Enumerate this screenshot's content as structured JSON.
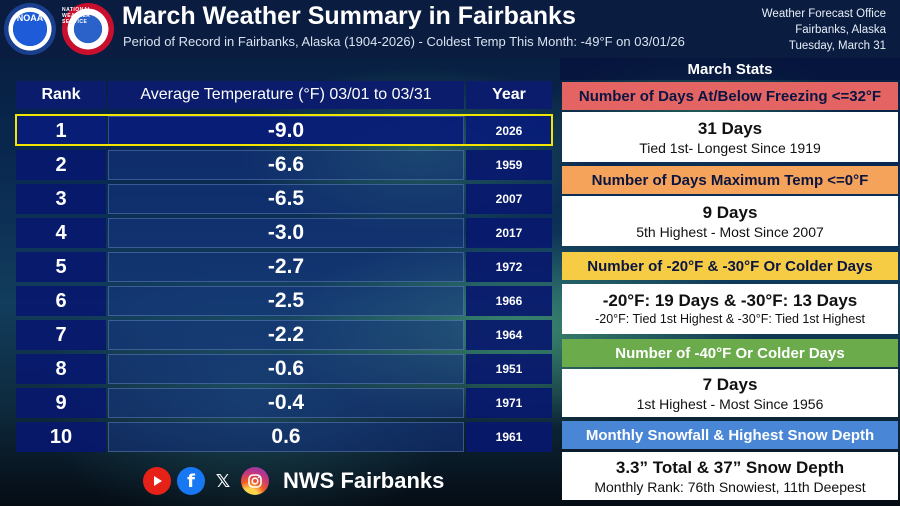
{
  "header": {
    "title": "March Weather Summary in Fairbanks",
    "subtitle": "Period of Record in Fairbanks, Alaska (1904-2026) - Coldest Temp This Month: -49°F on 03/01/26",
    "office_line1": "Weather Forecast Office",
    "office_line2": "Fairbanks, Alaska",
    "office_line3": "Tuesday, March 31",
    "logo_noaa_text": "NOAA",
    "logo_nws_text": "NATIONAL WEATHER SERVICE"
  },
  "table": {
    "col_rank": "Rank",
    "col_temp": "Average Temperature (°F) 03/01 to 03/31",
    "col_year": "Year",
    "rows": [
      {
        "rank": "1",
        "temp": "-9.0",
        "year": "2026"
      },
      {
        "rank": "2",
        "temp": "-6.6",
        "year": "1959"
      },
      {
        "rank": "3",
        "temp": "-6.5",
        "year": "2007"
      },
      {
        "rank": "4",
        "temp": "-3.0",
        "year": "2017"
      },
      {
        "rank": "5",
        "temp": "-2.7",
        "year": "1972"
      },
      {
        "rank": "6",
        "temp": "-2.5",
        "year": "1966"
      },
      {
        "rank": "7",
        "temp": "-2.2",
        "year": "1964"
      },
      {
        "rank": "8",
        "temp": "-0.6",
        "year": "1951"
      },
      {
        "rank": "9",
        "temp": "-0.4",
        "year": "1971"
      },
      {
        "rank": "10",
        "temp": "0.6",
        "year": "1961"
      }
    ],
    "highlight_color": "#f2e600"
  },
  "stats": {
    "title": "March Stats",
    "freezing_label": "Number of Days At/Below Freezing <=32°F",
    "freezing_value": "31 Days",
    "freezing_detail": "Tied 1st- Longest Since 1919",
    "maxzero_label": "Number of Days Maximum Temp <=0°F",
    "maxzero_value": "9 Days",
    "maxzero_detail": "5th Highest - Most Since 2007",
    "cold_label": "Number of -20°F & -30°F Or Colder Days",
    "cold_value": "-20°F: 19 Days & -30°F: 13 Days",
    "cold_detail": "-20°F: Tied 1st Highest & -30°F: Tied 1st Highest",
    "minus40_label": "Number of -40°F Or Colder Days",
    "minus40_value": "7 Days",
    "minus40_detail": "1st Highest - Most Since 1956",
    "snow_label": "Monthly Snowfall & Highest Snow Depth",
    "snow_value": "3.3” Total & 37” Snow Depth",
    "snow_detail": "Monthly Rank: 76th Snowiest, 11th Deepest",
    "colors": {
      "freezing": "#e46464",
      "maxzero": "#f5a35a",
      "cold": "#f6cc45",
      "minus40": "#6cab4c",
      "snow": "#4a86d6"
    }
  },
  "footer": {
    "youtube_icon": "youtube-icon",
    "facebook_icon": "facebook-icon",
    "facebook_glyph": "f",
    "x_icon": "x-icon",
    "x_glyph": "𝕏",
    "instagram_icon": "instagram-icon",
    "handle": "NWS Fairbanks"
  }
}
